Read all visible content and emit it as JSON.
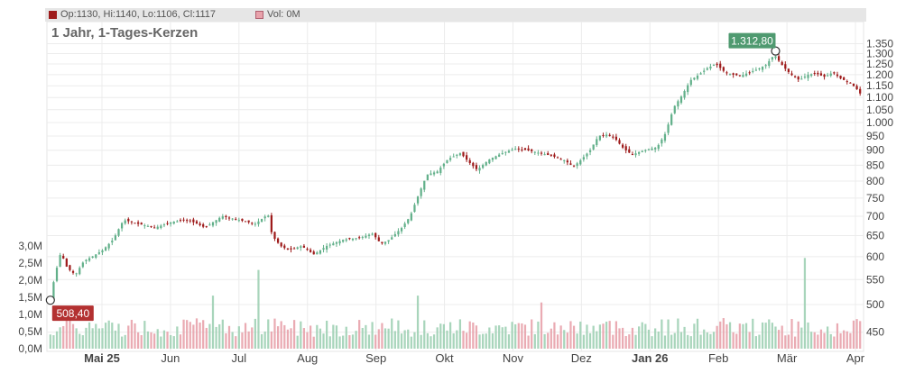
{
  "legend": {
    "ohlc": "Op:1130, Hi:1140, Lo:1106, Cl:1117",
    "volume": "Vol: 0M",
    "up_color": "#62b08a",
    "down_color": "#9e1b1b",
    "volume_color": "#e8a2ab"
  },
  "subtitle": "1 Jahr, 1-Tages-Kerzen",
  "chart_data": {
    "type": "candlestick",
    "price_axis": {
      "scale": "log",
      "ticks": [
        450,
        500,
        550,
        600,
        650,
        700,
        750,
        800,
        850,
        900,
        950,
        1000,
        1050,
        1100,
        1150,
        1200,
        1250,
        1300,
        1350
      ],
      "tick_labels": [
        "450",
        "500",
        "550",
        "600",
        "650",
        "700",
        "750",
        "800",
        "850",
        "900",
        "950",
        "1.000",
        "1.050",
        "1.100",
        "1.150",
        "1.200",
        "1.250",
        "1.300",
        "1.350"
      ],
      "range": [
        430,
        1390
      ]
    },
    "volume_axis": {
      "ticks": [
        0,
        0.5,
        1.0,
        1.5,
        2.0,
        2.5,
        3.0
      ],
      "tick_labels": [
        "0,0M",
        "0,5M",
        "1,0M",
        "1,5M",
        "2,0M",
        "2,5M",
        "3,0M"
      ],
      "range": [
        0,
        3.0
      ]
    },
    "x_axis": {
      "labels": [
        {
          "text": "Mai 25",
          "bold": true
        },
        {
          "text": "Jun",
          "bold": false
        },
        {
          "text": "Jul",
          "bold": false
        },
        {
          "text": "Aug",
          "bold": false
        },
        {
          "text": "Sep",
          "bold": false
        },
        {
          "text": "Okt",
          "bold": false
        },
        {
          "text": "Nov",
          "bold": false
        },
        {
          "text": "Dez",
          "bold": false
        },
        {
          "text": "Jan 26",
          "bold": true
        },
        {
          "text": "Feb",
          "bold": false
        },
        {
          "text": "Mär",
          "bold": false
        },
        {
          "text": "Apr",
          "bold": false
        }
      ]
    },
    "price_path": [
      [
        0,
        508
      ],
      [
        2,
        555
      ],
      [
        5,
        610
      ],
      [
        8,
        575
      ],
      [
        12,
        560
      ],
      [
        16,
        590
      ],
      [
        20,
        600
      ],
      [
        25,
        615
      ],
      [
        30,
        640
      ],
      [
        35,
        690
      ],
      [
        42,
        680
      ],
      [
        50,
        670
      ],
      [
        58,
        685
      ],
      [
        66,
        690
      ],
      [
        74,
        670
      ],
      [
        82,
        700
      ],
      [
        90,
        690
      ],
      [
        98,
        680
      ],
      [
        104,
        705
      ],
      [
        106,
        650
      ],
      [
        110,
        625
      ],
      [
        114,
        615
      ],
      [
        120,
        625
      ],
      [
        126,
        605
      ],
      [
        132,
        625
      ],
      [
        140,
        640
      ],
      [
        148,
        645
      ],
      [
        154,
        655
      ],
      [
        158,
        630
      ],
      [
        162,
        640
      ],
      [
        168,
        670
      ],
      [
        172,
        700
      ],
      [
        176,
        760
      ],
      [
        180,
        820
      ],
      [
        185,
        830
      ],
      [
        190,
        870
      ],
      [
        196,
        890
      ],
      [
        200,
        860
      ],
      [
        204,
        835
      ],
      [
        210,
        870
      ],
      [
        216,
        890
      ],
      [
        222,
        905
      ],
      [
        228,
        900
      ],
      [
        234,
        890
      ],
      [
        240,
        880
      ],
      [
        246,
        865
      ],
      [
        250,
        845
      ],
      [
        254,
        870
      ],
      [
        258,
        900
      ],
      [
        262,
        950
      ],
      [
        266,
        955
      ],
      [
        270,
        940
      ],
      [
        274,
        905
      ],
      [
        278,
        885
      ],
      [
        284,
        900
      ],
      [
        290,
        910
      ],
      [
        294,
        960
      ],
      [
        298,
        1060
      ],
      [
        302,
        1110
      ],
      [
        306,
        1175
      ],
      [
        310,
        1200
      ],
      [
        314,
        1230
      ],
      [
        318,
        1250
      ],
      [
        322,
        1215
      ],
      [
        326,
        1200
      ],
      [
        330,
        1195
      ],
      [
        334,
        1210
      ],
      [
        338,
        1225
      ],
      [
        342,
        1245
      ],
      [
        346,
        1295
      ],
      [
        350,
        1240
      ],
      [
        354,
        1200
      ],
      [
        358,
        1175
      ],
      [
        362,
        1200
      ],
      [
        366,
        1205
      ],
      [
        370,
        1190
      ],
      [
        374,
        1210
      ],
      [
        378,
        1180
      ],
      [
        382,
        1165
      ],
      [
        385,
        1140
      ],
      [
        387,
        1117
      ]
    ],
    "candles_count": 250,
    "volume_spikes": [
      {
        "index": 77,
        "value": 1.55
      },
      {
        "index": 100,
        "value": 2.3
      },
      {
        "index": 176,
        "value": 1.55
      },
      {
        "index": 234,
        "value": 1.35
      },
      {
        "index": 360,
        "value": 2.65
      }
    ],
    "annotations": {
      "high": {
        "value": 1312.8,
        "label": "1.312,80"
      },
      "low": {
        "value": 508.4,
        "label": "508,40"
      }
    }
  }
}
